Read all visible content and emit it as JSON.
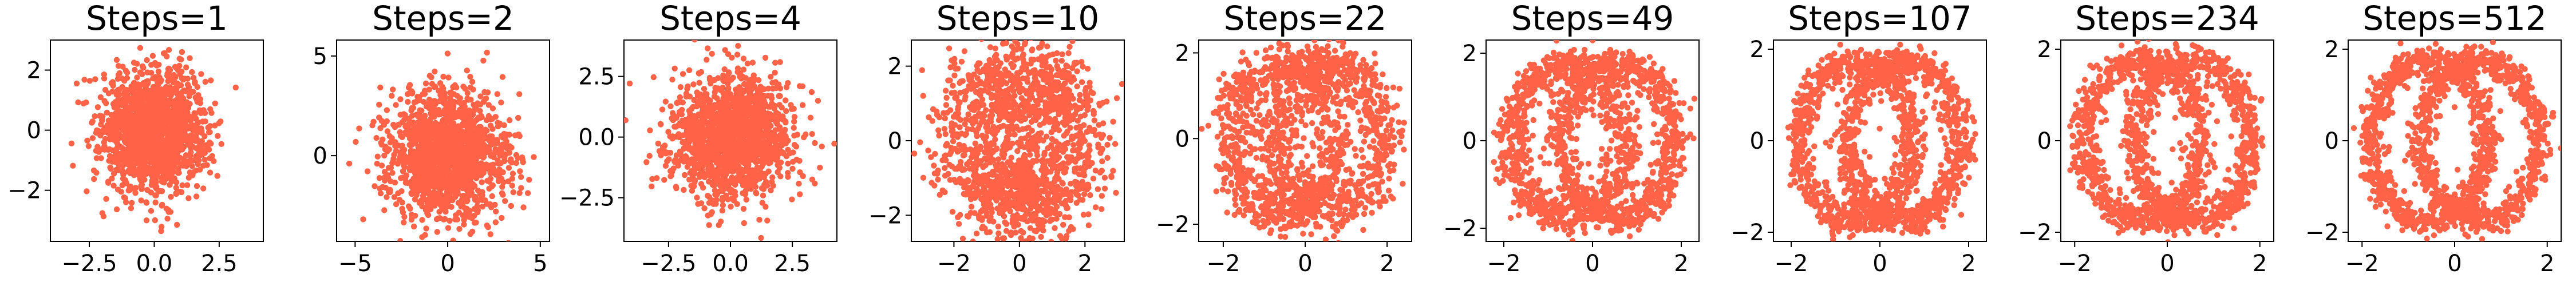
{
  "figure": {
    "marker_color": "#FF6347",
    "background": "#ffffff"
  },
  "chart_data": [
    {
      "type": "scatter",
      "title": "Steps=1",
      "distribution": "isotropic-gaussian",
      "xlim": [
        -4.0,
        4.2
      ],
      "ylim": [
        -3.7,
        3.0
      ],
      "xticks": [
        -2.5,
        0.0,
        2.5
      ],
      "xtick_labels": [
        "−2.5",
        "0.0",
        "2.5"
      ],
      "yticks": [
        -2,
        0,
        2
      ],
      "ytick_labels": [
        "−2",
        "0",
        "2"
      ],
      "grid": false
    },
    {
      "type": "scatter",
      "title": "Steps=2",
      "distribution": "isotropic-gaussian",
      "xlim": [
        -6.0,
        5.5
      ],
      "ylim": [
        -4.3,
        5.8
      ],
      "xticks": [
        -5,
        0,
        5
      ],
      "xtick_labels": [
        "−5",
        "0",
        "5"
      ],
      "yticks": [
        0,
        5
      ],
      "ytick_labels": [
        "0",
        "5"
      ],
      "grid": false
    },
    {
      "type": "scatter",
      "title": "Steps=4",
      "distribution": "isotropic-gaussian",
      "xlim": [
        -4.3,
        4.3
      ],
      "ylim": [
        -4.3,
        4.0
      ],
      "xticks": [
        -2.5,
        0.0,
        2.5
      ],
      "xtick_labels": [
        "−2.5",
        "0.0",
        "2.5"
      ],
      "yticks": [
        -2.5,
        0.0,
        2.5
      ],
      "ytick_labels": [
        "−2.5",
        "0.0",
        "2.5"
      ],
      "grid": false
    },
    {
      "type": "scatter",
      "title": "Steps=10",
      "distribution": "blurred-two-rings",
      "xlim": [
        -3.3,
        3.2
      ],
      "ylim": [
        -2.7,
        2.7
      ],
      "xticks": [
        -2,
        0,
        2
      ],
      "xtick_labels": [
        "−2",
        "0",
        "2"
      ],
      "yticks": [
        -2,
        0,
        2
      ],
      "ytick_labels": [
        "−2",
        "0",
        "2"
      ],
      "grid": false
    },
    {
      "type": "scatter",
      "title": "Steps=22",
      "distribution": "two-rings",
      "xlim": [
        -2.6,
        2.6
      ],
      "ylim": [
        -2.4,
        2.3
      ],
      "xticks": [
        -2,
        0,
        2
      ],
      "xtick_labels": [
        "−2",
        "0",
        "2"
      ],
      "yticks": [
        -2,
        0,
        2
      ],
      "ytick_labels": [
        "−2",
        "0",
        "2"
      ],
      "grid": false
    },
    {
      "type": "scatter",
      "title": "Steps=49",
      "distribution": "two-rings",
      "xlim": [
        -2.4,
        2.4
      ],
      "ylim": [
        -2.3,
        2.3
      ],
      "xticks": [
        -2,
        0,
        2
      ],
      "xtick_labels": [
        "−2",
        "0",
        "2"
      ],
      "yticks": [
        -2,
        0,
        2
      ],
      "ytick_labels": [
        "−2",
        "0",
        "2"
      ],
      "grid": false
    },
    {
      "type": "scatter",
      "title": "Steps=107",
      "distribution": "two-rings",
      "xlim": [
        -2.4,
        2.4
      ],
      "ylim": [
        -2.2,
        2.2
      ],
      "xticks": [
        -2,
        0,
        2
      ],
      "xtick_labels": [
        "−2",
        "0",
        "2"
      ],
      "yticks": [
        -2,
        0,
        2
      ],
      "ytick_labels": [
        "−2",
        "0",
        "2"
      ],
      "grid": false
    },
    {
      "type": "scatter",
      "title": "Steps=234",
      "distribution": "two-rings",
      "xlim": [
        -2.3,
        2.3
      ],
      "ylim": [
        -2.2,
        2.2
      ],
      "xticks": [
        -2,
        0,
        2
      ],
      "xtick_labels": [
        "−2",
        "0",
        "2"
      ],
      "yticks": [
        -2,
        0,
        2
      ],
      "ytick_labels": [
        "−2",
        "0",
        "2"
      ],
      "grid": false
    },
    {
      "type": "scatter",
      "title": "Steps=512",
      "distribution": "two-rings",
      "xlim": [
        -2.3,
        2.3
      ],
      "ylim": [
        -2.2,
        2.2
      ],
      "xticks": [
        -2,
        0,
        2
      ],
      "xtick_labels": [
        "−2",
        "0",
        "2"
      ],
      "yticks": [
        -2,
        0,
        2
      ],
      "ytick_labels": [
        "−2",
        "0",
        "2"
      ],
      "grid": false
    }
  ]
}
